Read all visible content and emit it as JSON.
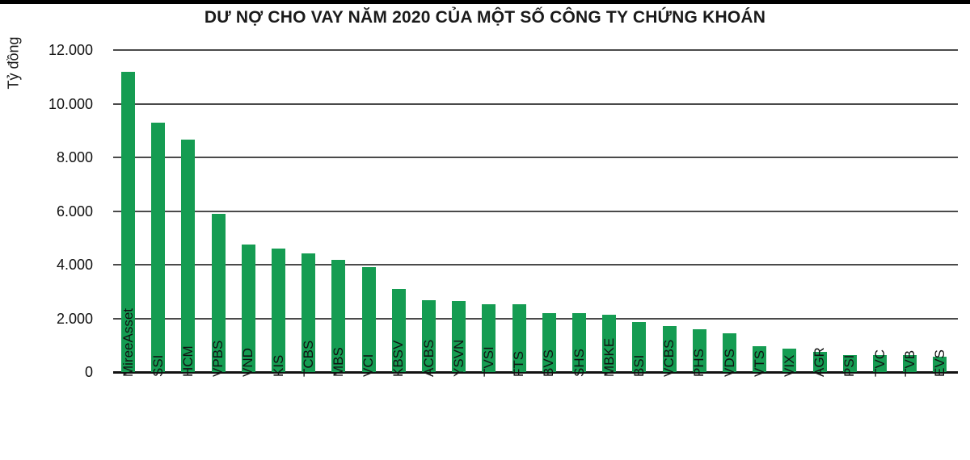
{
  "chart_data": {
    "type": "bar",
    "title": "DƯ NỢ CHO VAY NĂM 2020 CỦA MỘT SỐ CÔNG TY CHỨNG KHOÁN",
    "ylabel": "Tỷ đồng",
    "xlabel": "",
    "ylim": [
      0,
      12000
    ],
    "grid": true,
    "legend": "none",
    "bar_color": "#159c52",
    "gridline_color": "#4a4a4a",
    "axis_color": "#111111",
    "y_ticks": [
      {
        "value": 12000,
        "label": "12.000"
      },
      {
        "value": 10000,
        "label": "10.000"
      },
      {
        "value": 8000,
        "label": "8.000"
      },
      {
        "value": 6000,
        "label": "6.000"
      },
      {
        "value": 4000,
        "label": "4.000"
      },
      {
        "value": 2000,
        "label": "2.000"
      },
      {
        "value": 0,
        "label": "0"
      }
    ],
    "categories": [
      "MireeAsset",
      "SSI",
      "HCM",
      "VPBS",
      "VND",
      "KIS",
      "TCBS",
      "MBS",
      "VCI",
      "KBSV",
      "ACBS",
      "YSVN",
      "TVSI",
      "FTS",
      "BVS",
      "SHS",
      "MBKE",
      "BSI",
      "VCBS",
      "PHS",
      "VDS",
      "VTS",
      "VIX",
      "AGR",
      "PSI",
      "TVC",
      "TVB",
      "EVS"
    ],
    "values": [
      11200,
      9300,
      8650,
      5880,
      4740,
      4610,
      4430,
      4170,
      3920,
      3100,
      2670,
      2660,
      2530,
      2520,
      2210,
      2200,
      2140,
      1850,
      1700,
      1580,
      1450,
      960,
      880,
      760,
      640,
      640,
      630,
      570
    ]
  }
}
